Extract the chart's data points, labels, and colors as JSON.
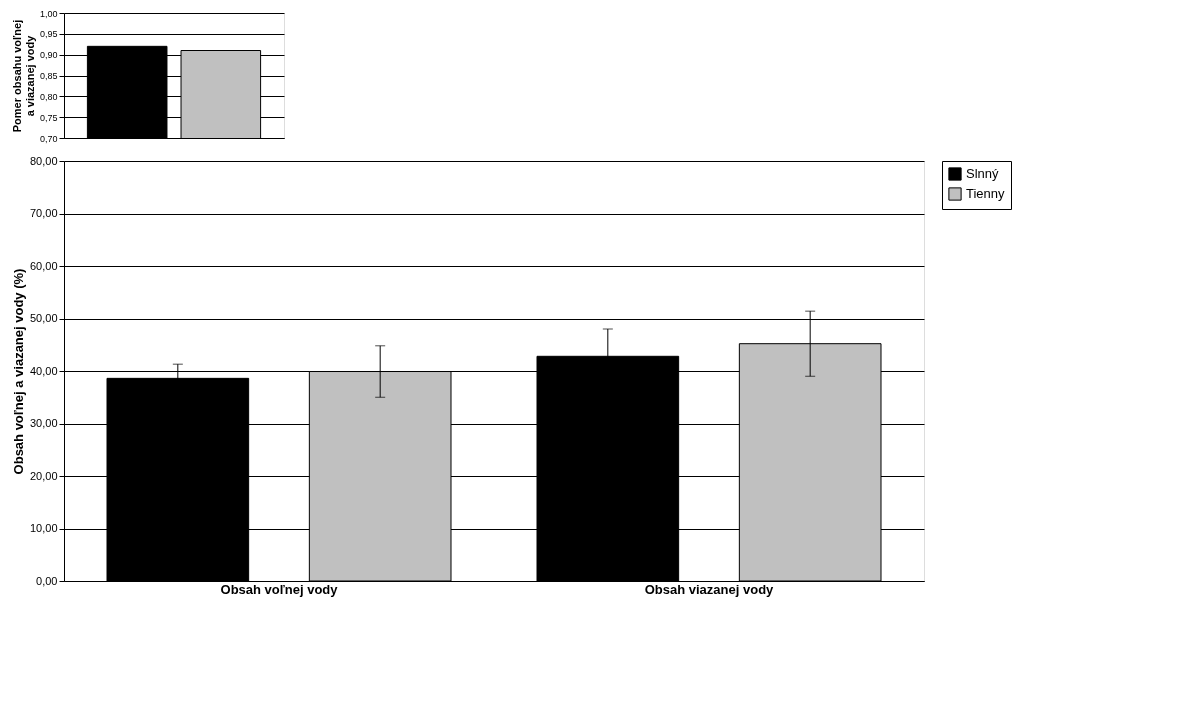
{
  "chart_data": [
    {
      "type": "bar",
      "categories": [
        null,
        null
      ],
      "values": [
        0.92,
        0.91
      ],
      "colors": [
        "#000000",
        "#c0c0c0"
      ],
      "ylabel": "Pomer obsahu voľnej\na viazanej vody",
      "ylim": [
        0.7,
        1.0
      ],
      "yticks": [
        {
          "value": 0.7,
          "label": "0,70"
        },
        {
          "value": 0.75,
          "label": "0,75"
        },
        {
          "value": 0.8,
          "label": "0,80"
        },
        {
          "value": 0.85,
          "label": "0,85"
        },
        {
          "value": 0.9,
          "label": "0,90"
        },
        {
          "value": 0.95,
          "label": "0,95"
        },
        {
          "value": 1.0,
          "label": "1,00"
        }
      ],
      "grid": "y",
      "tick_labels": "y"
    },
    {
      "type": "bar",
      "categories": [
        "Obsah voľnej vody",
        "Obsah viazanej vody"
      ],
      "ylabel": "Obsah voľnej a viazanej vody (%)",
      "series": [
        {
          "name": "Slnný",
          "color": "#000000",
          "values": [
            38.6,
            42.8
          ],
          "errors": [
            2.7,
            5.2
          ]
        },
        {
          "name": "Tienny",
          "color": "#c0c0c0",
          "values": [
            39.9,
            45.2
          ],
          "errors": [
            4.9,
            6.2
          ]
        }
      ],
      "ylim": [
        0,
        80
      ],
      "yticks": [
        {
          "value": 0,
          "label": "0,00"
        },
        {
          "value": 10,
          "label": "10,00"
        },
        {
          "value": 20,
          "label": "20,00"
        },
        {
          "value": 30,
          "label": "30,00"
        },
        {
          "value": 40,
          "label": "40,00"
        },
        {
          "value": 50,
          "label": "50,00"
        },
        {
          "value": 60,
          "label": "60,00"
        },
        {
          "value": 70,
          "label": "70,00"
        },
        {
          "value": 80,
          "label": "80,00"
        }
      ],
      "grid": "y",
      "legend": "right"
    }
  ]
}
